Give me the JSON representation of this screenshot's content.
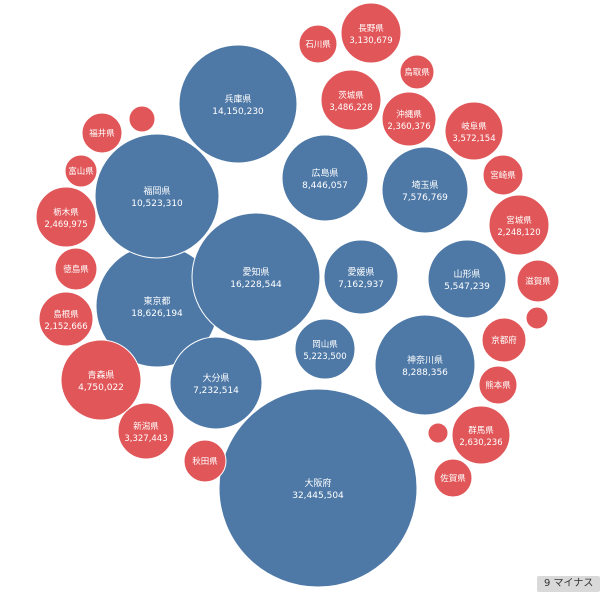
{
  "chart_data": {
    "type": "bubble",
    "series_colors": {
      "positive": "#4e79a7",
      "negative": "#e15759"
    },
    "points": [
      {
        "name": "大阪府",
        "value": "32,445,504",
        "v": 32445504,
        "sign": "positive"
      },
      {
        "name": "東京都",
        "value": "18,626,194",
        "v": 18626194,
        "sign": "positive"
      },
      {
        "name": "愛知県",
        "value": "16,228,544",
        "v": 16228544,
        "sign": "positive"
      },
      {
        "name": "兵庫県",
        "value": "14,150,230",
        "v": 14150230,
        "sign": "positive"
      },
      {
        "name": "福岡県",
        "value": "10,523,310",
        "v": 10523310,
        "sign": "positive"
      },
      {
        "name": "広島県",
        "value": "8,446,057",
        "v": 8446057,
        "sign": "positive"
      },
      {
        "name": "神奈川県",
        "value": "8,288,356",
        "v": 8288356,
        "sign": "positive"
      },
      {
        "name": "埼玉県",
        "value": "7,576,769",
        "v": 7576769,
        "sign": "positive"
      },
      {
        "name": "大分県",
        "value": "7,232,514",
        "v": 7232514,
        "sign": "positive"
      },
      {
        "name": "愛媛県",
        "value": "7,162,937",
        "v": 7162937,
        "sign": "positive"
      },
      {
        "name": "山形県",
        "value": "5,547,239",
        "v": 5547239,
        "sign": "positive"
      },
      {
        "name": "岡山県",
        "value": "5,223,500",
        "v": 5223500,
        "sign": "positive"
      },
      {
        "name": "青森県",
        "value": "4,750,022",
        "v": 4750022,
        "sign": "negative"
      },
      {
        "name": "岐阜県",
        "value": "3,572,154",
        "v": 3572154,
        "sign": "negative"
      },
      {
        "name": "茨城県",
        "value": "3,486,228",
        "v": 3486228,
        "sign": "negative"
      },
      {
        "name": "新潟県",
        "value": "3,327,443",
        "v": 3327443,
        "sign": "negative"
      },
      {
        "name": "長野県",
        "value": "3,130,679",
        "v": 3130679,
        "sign": "negative"
      },
      {
        "name": "群馬県",
        "value": "2,630,236",
        "v": 2630236,
        "sign": "negative"
      },
      {
        "name": "栃木県",
        "value": "2,469,975",
        "v": 2469975,
        "sign": "negative"
      },
      {
        "name": "沖縄県",
        "value": "2,360,376",
        "v": 2360376,
        "sign": "negative"
      },
      {
        "name": "宮城県",
        "value": "2,248,120",
        "v": 2248120,
        "sign": "negative"
      },
      {
        "name": "島根県",
        "value": "2,152,666",
        "v": 2152666,
        "sign": "negative"
      },
      {
        "name": "秋田県",
        "value": "",
        "sign": "negative"
      },
      {
        "name": "滋賀県",
        "value": "",
        "sign": "negative"
      },
      {
        "name": "京都府",
        "value": "",
        "sign": "negative"
      },
      {
        "name": "宮崎県",
        "value": "",
        "sign": "negative"
      },
      {
        "name": "徳島県",
        "value": "",
        "sign": "negative"
      },
      {
        "name": "熊本県",
        "value": "",
        "sign": "negative"
      },
      {
        "name": "佐賀県",
        "value": "",
        "sign": "negative"
      },
      {
        "name": "福井県",
        "value": "",
        "sign": "negative"
      },
      {
        "name": "石川県",
        "value": "",
        "sign": "negative"
      },
      {
        "name": "富山県",
        "value": "",
        "sign": "negative"
      },
      {
        "name": "鳥取県",
        "value": "",
        "sign": "negative"
      },
      {
        "name": "",
        "value": "",
        "sign": "negative"
      },
      {
        "name": "",
        "value": "",
        "sign": "negative"
      },
      {
        "name": "",
        "value": "",
        "sign": "negative"
      }
    ]
  },
  "badge": {
    "label": "9 マイナス"
  }
}
